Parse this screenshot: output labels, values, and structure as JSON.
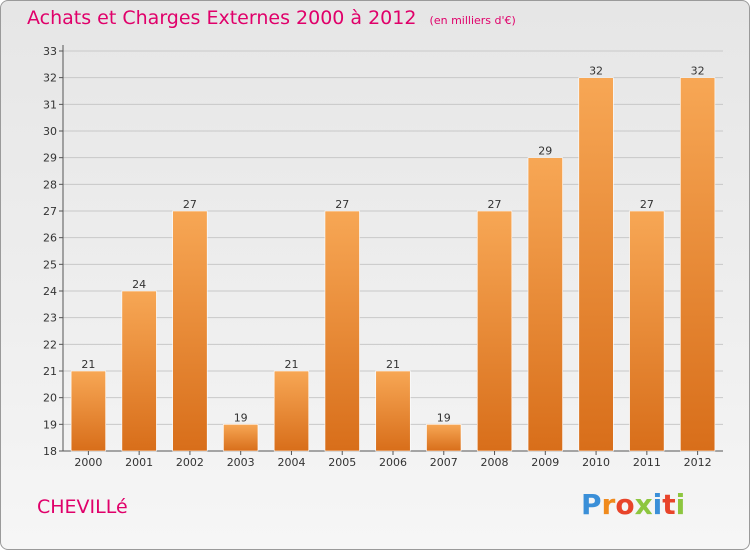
{
  "title": "Achats et Charges Externes 2000 à 2012",
  "unit": "(en milliers d'€)",
  "location": "CHEVILLé",
  "brand": {
    "letters": [
      "P",
      "r",
      "o",
      "x",
      "i",
      "t",
      "i"
    ],
    "colors": [
      "#3a8fd8",
      "#f08a1c",
      "#e8442a",
      "#8dc63f",
      "#3a8fd8",
      "#e8442a",
      "#8dc63f"
    ]
  },
  "colors": {
    "title": "#e0006a",
    "bar_top": "#f7a755",
    "bar_bottom": "#d86e1a",
    "grid": "#c8c8c8"
  },
  "chart_data": {
    "type": "bar",
    "categories": [
      "2000",
      "2001",
      "2002",
      "2003",
      "2004",
      "2005",
      "2006",
      "2007",
      "2008",
      "2009",
      "2010",
      "2011",
      "2012"
    ],
    "values": [
      21,
      24,
      27,
      19,
      21,
      27,
      21,
      19,
      27,
      29,
      32,
      27,
      32
    ],
    "yticks": [
      18,
      19,
      20,
      21,
      22,
      23,
      24,
      25,
      26,
      27,
      28,
      29,
      30,
      31,
      32,
      33
    ],
    "ylim": [
      18,
      33
    ],
    "grid": true,
    "xlabel": "",
    "ylabel": ""
  }
}
